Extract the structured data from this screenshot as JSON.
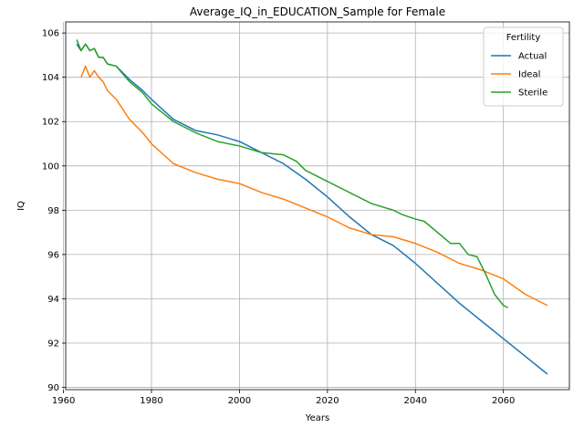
{
  "chart_data": {
    "type": "line",
    "title": "Average_IQ_in_EDUCATION_Sample for Female",
    "xlabel": "Years",
    "ylabel": "IQ",
    "xlim": [
      1960.5,
      2075
    ],
    "ylim": [
      89.9,
      106.5
    ],
    "xticks": [
      1960,
      1980,
      2000,
      2020,
      2040,
      2060
    ],
    "yticks": [
      90,
      92,
      94,
      96,
      98,
      100,
      102,
      104,
      106
    ],
    "grid": true,
    "legend": {
      "title": "Fertility",
      "position": "top-right"
    },
    "series": [
      {
        "name": "Actual",
        "color": "#1f77b4",
        "x": [
          1963,
          1964,
          1965,
          1966,
          1967,
          1968,
          1969,
          1970,
          1972,
          1975,
          1978,
          1980,
          1985,
          1990,
          1995,
          2000,
          2005,
          2010,
          2015,
          2020,
          2025,
          2030,
          2035,
          2040,
          2045,
          2050,
          2055,
          2060,
          2065,
          2070
        ],
        "y": [
          105.5,
          105.2,
          105.5,
          105.2,
          105.3,
          104.9,
          104.9,
          104.6,
          104.5,
          103.9,
          103.4,
          103.0,
          102.1,
          101.6,
          101.4,
          101.1,
          100.6,
          100.1,
          99.4,
          98.6,
          97.7,
          96.9,
          96.4,
          95.6,
          94.7,
          93.8,
          93.0,
          92.2,
          91.4,
          90.6
        ]
      },
      {
        "name": "Ideal",
        "color": "#ff7f0e",
        "x": [
          1964,
          1965,
          1966,
          1967,
          1968,
          1969,
          1970,
          1972,
          1975,
          1978,
          1980,
          1985,
          1990,
          1995,
          2000,
          2005,
          2010,
          2015,
          2020,
          2025,
          2030,
          2035,
          2040,
          2045,
          2050,
          2055,
          2060,
          2065,
          2070
        ],
        "y": [
          104.0,
          104.5,
          104.0,
          104.3,
          104.0,
          103.8,
          103.4,
          103.0,
          102.1,
          101.5,
          101.0,
          100.1,
          99.7,
          99.4,
          99.2,
          98.8,
          98.5,
          98.1,
          97.7,
          97.2,
          96.9,
          96.8,
          96.5,
          96.1,
          95.6,
          95.3,
          94.9,
          94.2,
          93.7
        ]
      },
      {
        "name": "Sterile",
        "color": "#2ca02c",
        "x": [
          1963,
          1964,
          1965,
          1966,
          1967,
          1968,
          1969,
          1970,
          1972,
          1975,
          1978,
          1980,
          1985,
          1990,
          1995,
          2000,
          2005,
          2010,
          2013,
          2015,
          2020,
          2025,
          2028,
          2030,
          2035,
          2037,
          2040,
          2042,
          2045,
          2048,
          2050,
          2052,
          2054,
          2056,
          2058,
          2060,
          2061
        ],
        "y": [
          105.7,
          105.2,
          105.5,
          105.2,
          105.3,
          104.9,
          104.9,
          104.6,
          104.5,
          103.8,
          103.3,
          102.8,
          102.0,
          101.5,
          101.1,
          100.9,
          100.6,
          100.5,
          100.2,
          99.8,
          99.3,
          98.8,
          98.5,
          98.3,
          98.0,
          97.8,
          97.6,
          97.5,
          97.0,
          96.5,
          96.5,
          96.0,
          95.9,
          95.1,
          94.2,
          93.7,
          93.6
        ]
      }
    ]
  }
}
